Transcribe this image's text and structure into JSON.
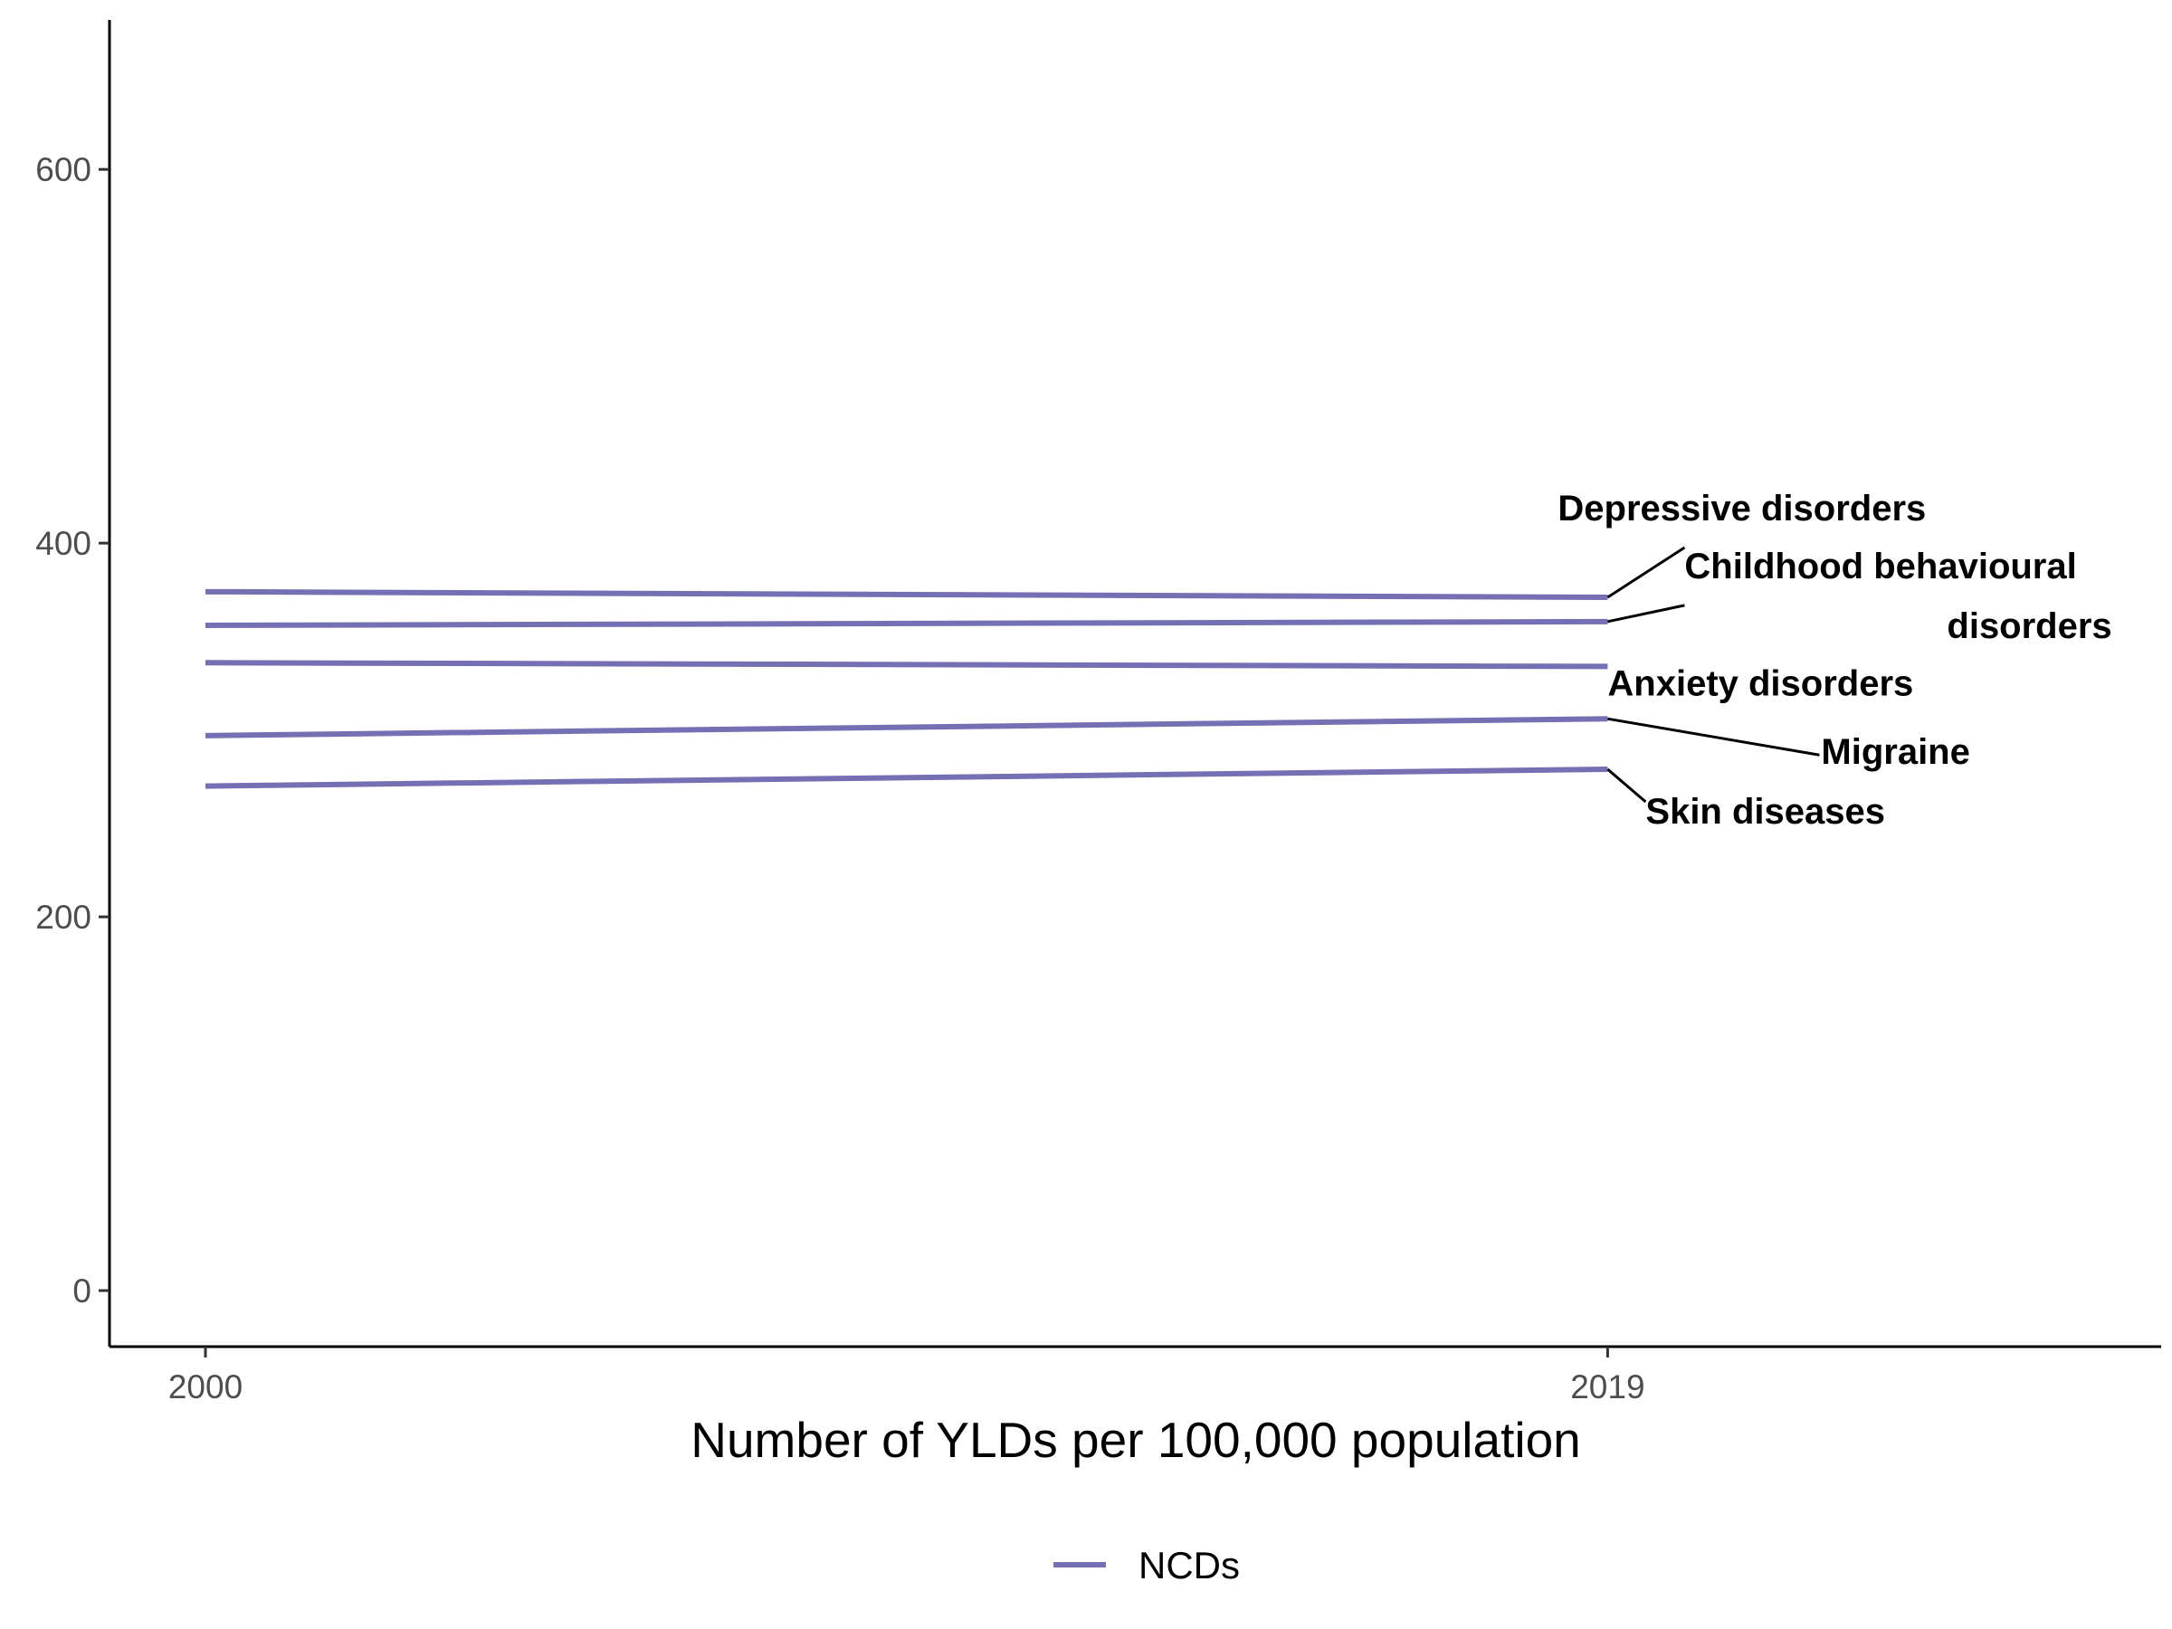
{
  "chart_data": {
    "type": "line",
    "title": "",
    "xlabel": "Number of YLDs per 100,000 population",
    "ylabel": "",
    "x": [
      2000,
      2019
    ],
    "x_ticks": [
      "2000",
      "2019"
    ],
    "xlim": [
      1998.7,
      2026.5
    ],
    "y_ticks": [
      "0",
      "200",
      "400",
      "600"
    ],
    "ylim": [
      -30,
      680
    ],
    "grid": false,
    "legend": {
      "position": "bottom",
      "entries": [
        "NCDs"
      ]
    },
    "line_color": "#7570b3",
    "series": [
      {
        "name": "Depressive disorders",
        "values": [
          374,
          371
        ]
      },
      {
        "name": "Childhood behavioural disorders",
        "values": [
          356,
          358
        ]
      },
      {
        "name": "Anxiety disorders",
        "values": [
          336,
          334
        ]
      },
      {
        "name": "Migraine",
        "values": [
          297,
          306
        ]
      },
      {
        "name": "Skin diseases",
        "values": [
          270,
          279
        ]
      }
    ]
  }
}
